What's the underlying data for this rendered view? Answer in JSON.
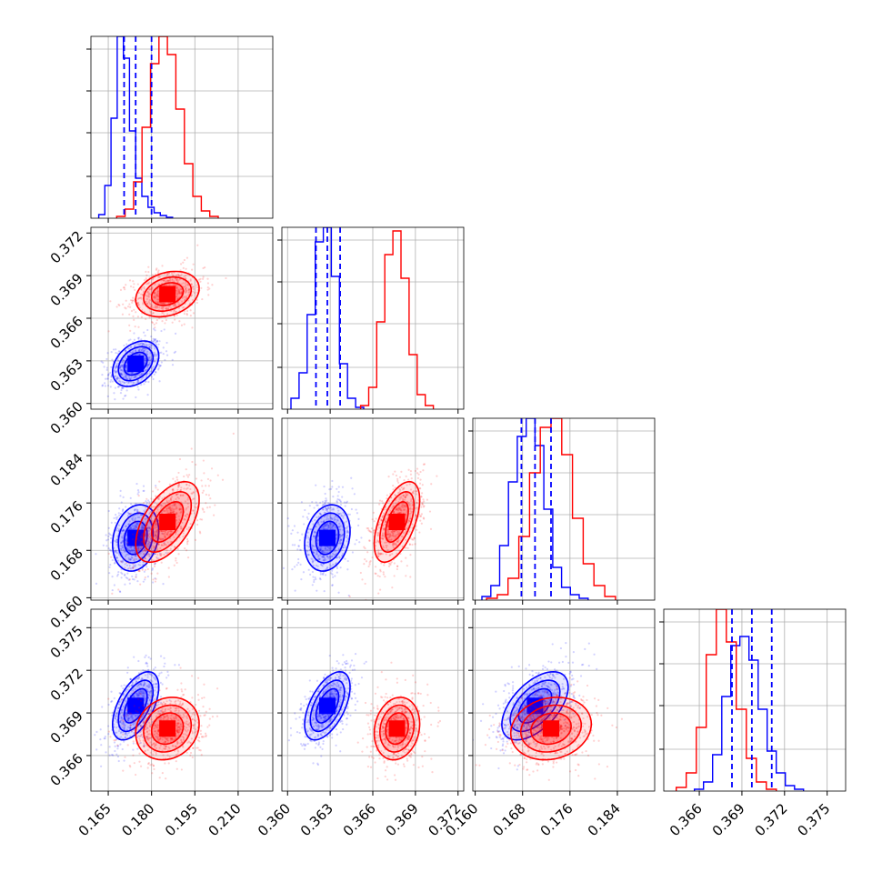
{
  "chart_data": {
    "type": "corner",
    "colors": {
      "series_a": "#0000ff",
      "series_b": "#ff0000"
    },
    "grid": true,
    "params": [
      {
        "ticks": [
          "0.165",
          "0.180",
          "0.195",
          "0.210"
        ],
        "tickvals": [
          0.165,
          0.18,
          0.195,
          0.21
        ],
        "range": [
          0.159,
          0.222
        ]
      },
      {
        "ticks": [
          "0.360",
          "0.363",
          "0.366",
          "0.369",
          "0.372"
        ],
        "tickvals": [
          0.36,
          0.363,
          0.366,
          0.369,
          0.372
        ],
        "range": [
          0.3596,
          0.3724
        ]
      },
      {
        "ticks": [
          "0.160",
          "0.168",
          "0.176",
          "0.184"
        ],
        "tickvals": [
          0.16,
          0.168,
          0.176,
          0.184
        ],
        "range": [
          0.1596,
          0.1903
        ]
      },
      {
        "ticks": [
          "0.366",
          "0.369",
          "0.372",
          "0.375"
        ],
        "tickvals": [
          0.366,
          0.369,
          0.372,
          0.375
        ],
        "range": [
          0.3635,
          0.3763
        ]
      }
    ],
    "series_a": {
      "means": [
        0.1745,
        0.3628,
        0.1701,
        0.3695
      ],
      "sds": [
        0.004,
        0.0008,
        0.0028,
        0.0012
      ],
      "quantiles": [
        [
          0.1705,
          0.1745,
          0.18
        ],
        [
          0.362,
          0.3628,
          0.3637
        ],
        [
          0.1678,
          0.1701,
          0.1728
        ],
        [
          0.3683,
          0.3697,
          0.3711
        ]
      ],
      "corr": [
        0,
        0.35,
        0.2,
        0.55
      ],
      "hist_samples": 4000
    },
    "series_b": {
      "means": [
        0.1855,
        0.3677,
        0.1728,
        0.3679
      ],
      "sds": [
        0.0055,
        0.0008,
        0.0034,
        0.0011
      ],
      "corr": [
        0,
        0.25,
        0.55,
        0.15
      ],
      "hist_samples": 4000
    },
    "hist_a": [
      [
        0.02,
        0.18,
        0.55,
        1.0,
        0.88,
        0.48,
        0.22,
        0.12,
        0.06,
        0.03,
        0.015,
        0.005
      ],
      [
        0.06,
        0.2,
        0.52,
        0.92,
        1.0,
        0.73,
        0.25,
        0.06,
        0.01
      ],
      [
        0.02,
        0.08,
        0.3,
        0.65,
        0.9,
        1.0,
        0.85,
        0.5,
        0.18,
        0.07,
        0.03,
        0.01
      ],
      [
        0.01,
        0.05,
        0.2,
        0.52,
        0.8,
        0.85,
        0.72,
        0.45,
        0.22,
        0.1,
        0.03,
        0.01
      ]
    ],
    "hist_b": [
      [
        0.01,
        0.05,
        0.2,
        0.5,
        0.85,
        1.0,
        0.9,
        0.6,
        0.3,
        0.12,
        0.04,
        0.01
      ],
      [
        0.02,
        0.12,
        0.48,
        0.85,
        0.98,
        0.72,
        0.3,
        0.08,
        0.02
      ],
      [
        0.01,
        0.03,
        0.12,
        0.35,
        0.7,
        0.95,
        1.0,
        0.8,
        0.45,
        0.2,
        0.08,
        0.02
      ],
      [
        0.02,
        0.1,
        0.35,
        0.75,
        1.0,
        0.82,
        0.45,
        0.18,
        0.05,
        0.01
      ]
    ]
  }
}
